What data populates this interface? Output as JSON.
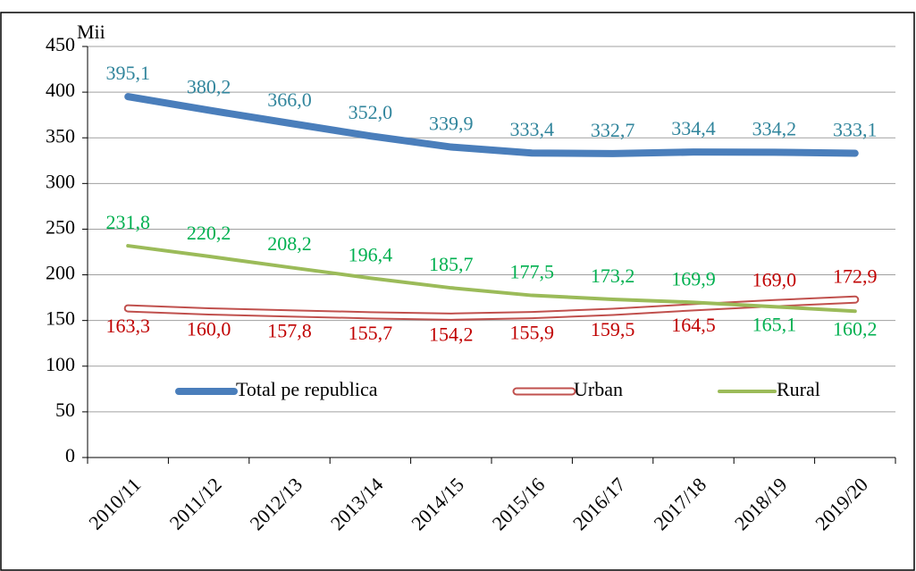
{
  "chart_data": {
    "type": "line",
    "y_label": "Mii",
    "categories": [
      "2010/11",
      "2011/12",
      "2012/13",
      "2013/14",
      "2014/15",
      "2015/16",
      "2016/17",
      "2017/18",
      "2018/19",
      "2019/20"
    ],
    "series": [
      {
        "name": "Total pe republica",
        "color": "#4a7ebb",
        "label_color": "#31859c",
        "style": "solid",
        "values": [
          395.1,
          380.2,
          366.0,
          352.0,
          339.9,
          333.4,
          332.7,
          334.4,
          334.2,
          333.1
        ],
        "value_labels": [
          "395,1",
          "380,2",
          "366,0",
          "352,0",
          "339,9",
          "333,4",
          "332,7",
          "334,4",
          "334,2",
          "333,1"
        ]
      },
      {
        "name": "Urban",
        "color": "#c0504d",
        "label_color": "#c00000",
        "style": "outline",
        "values": [
          163.3,
          160.0,
          157.8,
          155.7,
          154.2,
          155.9,
          159.5,
          164.5,
          169.0,
          172.9
        ],
        "value_labels": [
          "163,3",
          "160,0",
          "157,8",
          "155,7",
          "154,2",
          "155,9",
          "159,5",
          "164,5",
          "169,0",
          "172,9"
        ]
      },
      {
        "name": "Rural",
        "color": "#9bbb59",
        "label_color": "#00b050",
        "style": "solid",
        "values": [
          231.8,
          220.2,
          208.2,
          196.4,
          185.7,
          177.5,
          173.2,
          169.9,
          165.1,
          160.2
        ],
        "value_labels": [
          "231,8",
          "220,2",
          "208,2",
          "196,4",
          "185,7",
          "177,5",
          "173,2",
          "169,9",
          "165,1",
          "160,2"
        ]
      }
    ],
    "ylim": [
      0,
      450
    ],
    "yticks": [
      0,
      50,
      100,
      150,
      200,
      250,
      300,
      350,
      400,
      450
    ],
    "grid": true,
    "legend": "bottom"
  }
}
